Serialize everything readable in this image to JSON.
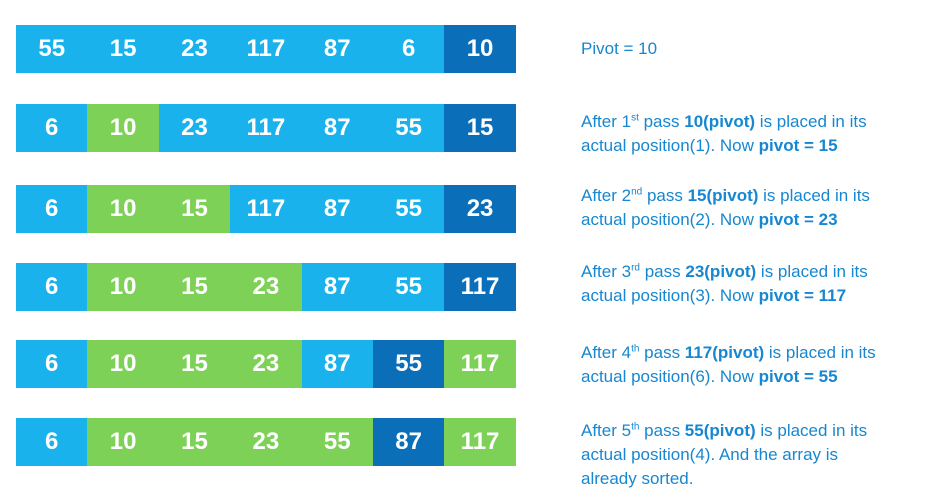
{
  "colors": {
    "unsorted": "#1ab2ec",
    "pivot": "#0b6eb9",
    "sorted": "#7ed157",
    "text": "#1687d0"
  },
  "rows": [
    {
      "cells": [
        {
          "value": "55",
          "state": "unsorted"
        },
        {
          "value": "15",
          "state": "unsorted"
        },
        {
          "value": "23",
          "state": "unsorted"
        },
        {
          "value": "117",
          "state": "unsorted"
        },
        {
          "value": "87",
          "state": "unsorted"
        },
        {
          "value": "6",
          "state": "unsorted"
        },
        {
          "value": "10",
          "state": "pivot"
        }
      ],
      "caption": {
        "line1": [
          {
            "t": "Pivot = 10",
            "s": "n"
          }
        ]
      }
    },
    {
      "cells": [
        {
          "value": "6",
          "state": "unsorted"
        },
        {
          "value": "10",
          "state": "sorted"
        },
        {
          "value": "23",
          "state": "unsorted"
        },
        {
          "value": "117",
          "state": "unsorted"
        },
        {
          "value": "87",
          "state": "unsorted"
        },
        {
          "value": "55",
          "state": "unsorted"
        },
        {
          "value": "15",
          "state": "pivot"
        }
      ],
      "caption": {
        "line1": [
          {
            "t": "After 1",
            "s": "n"
          },
          {
            "t": "st",
            "s": "sup"
          },
          {
            "t": " pass ",
            "s": "n"
          },
          {
            "t": "10(pivot)",
            "s": "b"
          },
          {
            "t": " is placed in its",
            "s": "n"
          }
        ],
        "line2": [
          {
            "t": "actual position(1). Now ",
            "s": "n"
          },
          {
            "t": "pivot = 15",
            "s": "b"
          }
        ]
      }
    },
    {
      "cells": [
        {
          "value": "6",
          "state": "unsorted"
        },
        {
          "value": "10",
          "state": "sorted"
        },
        {
          "value": "15",
          "state": "sorted"
        },
        {
          "value": "117",
          "state": "unsorted"
        },
        {
          "value": "87",
          "state": "unsorted"
        },
        {
          "value": "55",
          "state": "unsorted"
        },
        {
          "value": "23",
          "state": "pivot"
        }
      ],
      "caption": {
        "line1": [
          {
            "t": "After 2",
            "s": "n"
          },
          {
            "t": "nd",
            "s": "sup"
          },
          {
            "t": " pass ",
            "s": "n"
          },
          {
            "t": "15(pivot)",
            "s": "b"
          },
          {
            "t": " is placed in its",
            "s": "n"
          }
        ],
        "line2": [
          {
            "t": "actual position(2). Now ",
            "s": "n"
          },
          {
            "t": "pivot = 23",
            "s": "b"
          }
        ]
      }
    },
    {
      "cells": [
        {
          "value": "6",
          "state": "unsorted"
        },
        {
          "value": "10",
          "state": "sorted"
        },
        {
          "value": "15",
          "state": "sorted"
        },
        {
          "value": "23",
          "state": "sorted"
        },
        {
          "value": "87",
          "state": "unsorted"
        },
        {
          "value": "55",
          "state": "unsorted"
        },
        {
          "value": "117",
          "state": "pivot"
        }
      ],
      "caption": {
        "line1": [
          {
            "t": "After 3",
            "s": "n"
          },
          {
            "t": "rd",
            "s": "sup"
          },
          {
            "t": " pass ",
            "s": "n"
          },
          {
            "t": "23(pivot)",
            "s": "b"
          },
          {
            "t": " is placed in its",
            "s": "n"
          }
        ],
        "line2": [
          {
            "t": "actual position(3). Now ",
            "s": "n"
          },
          {
            "t": "pivot = 117",
            "s": "b"
          }
        ]
      }
    },
    {
      "cells": [
        {
          "value": "6",
          "state": "unsorted"
        },
        {
          "value": "10",
          "state": "sorted"
        },
        {
          "value": "15",
          "state": "sorted"
        },
        {
          "value": "23",
          "state": "sorted"
        },
        {
          "value": "87",
          "state": "unsorted"
        },
        {
          "value": "55",
          "state": "pivot"
        },
        {
          "value": "117",
          "state": "sorted"
        }
      ],
      "caption": {
        "line1": [
          {
            "t": "After 4",
            "s": "n"
          },
          {
            "t": "th",
            "s": "sup"
          },
          {
            "t": " pass ",
            "s": "n"
          },
          {
            "t": "117(pivot)",
            "s": "b"
          },
          {
            "t": " is placed in its",
            "s": "n"
          }
        ],
        "line2": [
          {
            "t": "actual position(6). Now ",
            "s": "n"
          },
          {
            "t": "pivot = 55",
            "s": "b"
          }
        ]
      }
    },
    {
      "cells": [
        {
          "value": "6",
          "state": "unsorted"
        },
        {
          "value": "10",
          "state": "sorted"
        },
        {
          "value": "15",
          "state": "sorted"
        },
        {
          "value": "23",
          "state": "sorted"
        },
        {
          "value": "55",
          "state": "sorted"
        },
        {
          "value": "87",
          "state": "pivot"
        },
        {
          "value": "117",
          "state": "sorted"
        }
      ],
      "caption": {
        "line1": [
          {
            "t": "After 5",
            "s": "n"
          },
          {
            "t": "th",
            "s": "sup"
          },
          {
            "t": " pass ",
            "s": "n"
          },
          {
            "t": "55(pivot)",
            "s": "b"
          },
          {
            "t": " is placed in its",
            "s": "n"
          }
        ],
        "line2": [
          {
            "t": "actual position(4). And the array is",
            "s": "n"
          }
        ],
        "line3": [
          {
            "t": "already sorted.",
            "s": "n"
          }
        ]
      }
    }
  ]
}
